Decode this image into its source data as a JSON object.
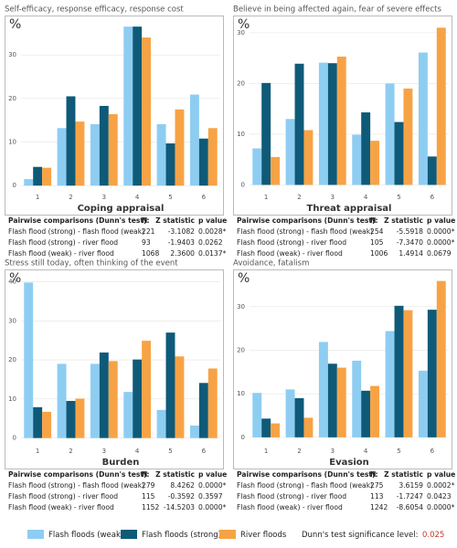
{
  "chart_data": [
    {
      "type": "bar",
      "title": "Self-efficacy, response efficacy, response cost",
      "xlabel": "Coping appraisal",
      "ylabel": "%",
      "categories": [
        "1",
        "2",
        "3",
        "4",
        "5",
        "6"
      ],
      "series": [
        {
          "name": "Flash floods (weak)",
          "color": "#8ecdf2",
          "values": [
            1.5,
            13.2,
            14.1,
            36.5,
            14.1,
            20.9
          ]
        },
        {
          "name": "Flash floods (strong)",
          "color": "#0e5a78",
          "values": [
            4.3,
            20.5,
            18.3,
            36.5,
            9.7,
            10.8
          ]
        },
        {
          "name": "River floods",
          "color": "#f7a345",
          "values": [
            4.1,
            14.7,
            16.4,
            34.0,
            17.5,
            13.2
          ]
        }
      ],
      "ylim": [
        -1,
        38
      ],
      "yticks": [
        0,
        10,
        20,
        30
      ],
      "grid": true
    },
    {
      "type": "bar",
      "title": "Believe in being affected again, fear of severe effects",
      "xlabel": "Threat appraisal",
      "ylabel": "%",
      "categories": [
        "1",
        "2",
        "3",
        "4",
        "5",
        "6"
      ],
      "series": [
        {
          "name": "Flash floods (weak)",
          "color": "#8ecdf2",
          "values": [
            7.2,
            13.0,
            24.1,
            9.9,
            20.0,
            26.1
          ]
        },
        {
          "name": "Flash floods (strong)",
          "color": "#0e5a78",
          "values": [
            20.1,
            23.9,
            24.0,
            14.3,
            12.4,
            5.6
          ]
        },
        {
          "name": "River floods",
          "color": "#f7a345",
          "values": [
            5.5,
            10.8,
            25.3,
            8.7,
            19.0,
            31.0
          ]
        }
      ],
      "ylim": [
        -1,
        32.5
      ],
      "yticks": [
        0,
        10,
        20,
        30
      ],
      "grid": true
    },
    {
      "type": "bar",
      "title": "Stress still today, often thinking of the event",
      "xlabel": "Burden",
      "ylabel": "%",
      "categories": [
        "1",
        "2",
        "3",
        "4",
        "5",
        "6"
      ],
      "series": [
        {
          "name": "Flash floods (weak)",
          "color": "#8ecdf2",
          "values": [
            39.8,
            19.0,
            19.0,
            11.8,
            7.2,
            3.2
          ]
        },
        {
          "name": "Flash floods (strong)",
          "color": "#0e5a78",
          "values": [
            7.9,
            9.5,
            21.9,
            20.1,
            27.0,
            14.1
          ]
        },
        {
          "name": "River floods",
          "color": "#f7a345",
          "values": [
            6.7,
            10.1,
            19.7,
            24.9,
            20.9,
            17.8
          ]
        }
      ],
      "ylim": [
        -1.5,
        42
      ],
      "yticks": [
        0,
        10,
        20,
        30,
        40
      ],
      "grid": true
    },
    {
      "type": "bar",
      "title": "Avoidance, fatalism",
      "xlabel": "Evasion",
      "ylabel": "%",
      "categories": [
        "1",
        "2",
        "3",
        "4",
        "5",
        "6"
      ],
      "series": [
        {
          "name": "Flash floods (weak)",
          "color": "#8ecdf2",
          "values": [
            10.2,
            11.0,
            21.9,
            17.6,
            24.4,
            15.3
          ]
        },
        {
          "name": "Flash floods (strong)",
          "color": "#0e5a78",
          "values": [
            4.3,
            9.0,
            16.9,
            10.7,
            30.2,
            29.3
          ]
        },
        {
          "name": "River floods",
          "color": "#f7a345",
          "values": [
            3.2,
            4.5,
            16.0,
            11.8,
            29.2,
            35.9
          ]
        }
      ],
      "ylim": [
        -1.5,
        37.5
      ],
      "yticks": [
        0,
        10,
        20,
        30
      ],
      "grid": true
    }
  ],
  "tables": [
    {
      "header": [
        "Pairwise comparisons (Dunn's test):",
        "N",
        "Z statistic",
        "p value"
      ],
      "rows": [
        [
          "Flash flood (strong) - flash flood (weak)",
          "221",
          "-3.1082",
          "0.0028*"
        ],
        [
          "Flash flood (strong) -  river flood",
          "93",
          "-1.9403",
          "0.0262"
        ],
        [
          "Flash flood (weak) -  river flood",
          "1068",
          "2.3600",
          "0.0137*"
        ]
      ]
    },
    {
      "header": [
        "Pairwise comparisons (Dunn's test):",
        "N",
        "Z statistic",
        "p value"
      ],
      "rows": [
        [
          "Flash flood (strong) - flash flood (weak)",
          "254",
          "-5.5918",
          "0.0000*"
        ],
        [
          "Flash flood (strong) -  river flood",
          "105",
          "-7.3470",
          "0.0000*"
        ],
        [
          "Flash flood (weak) -  river flood",
          "1006",
          "1.4914",
          "0.0679"
        ]
      ]
    },
    {
      "header": [
        "Pairwise comparisons (Dunn's test):",
        "N",
        "Z statistic",
        "p value"
      ],
      "rows": [
        [
          "Flash flood (strong) - flash flood (weak)",
          "279",
          "8.4262",
          "0.0000*"
        ],
        [
          "Flash flood (strong) -  river flood",
          "115",
          "-0.3592",
          "0.3597"
        ],
        [
          "Flash flood (weak) -  river flood",
          "1152",
          "-14.5203",
          "0.0000*"
        ]
      ]
    },
    {
      "header": [
        "Pairwise comparisons (Dunn's test):",
        "N",
        "Z statistic",
        "p value"
      ],
      "rows": [
        [
          "Flash flood (strong) - flash flood (weak)",
          "275",
          "3.6159",
          "0.0002*"
        ],
        [
          "Flash flood (strong) -  river flood",
          "113",
          "-1.7247",
          "0.0423"
        ],
        [
          "Flash flood (weak) -  river flood",
          "1242",
          "-8.6054",
          "0.0000*"
        ]
      ]
    }
  ],
  "significance": {
    "label": "Dunn's test significance level:",
    "value": 0.025
  }
}
